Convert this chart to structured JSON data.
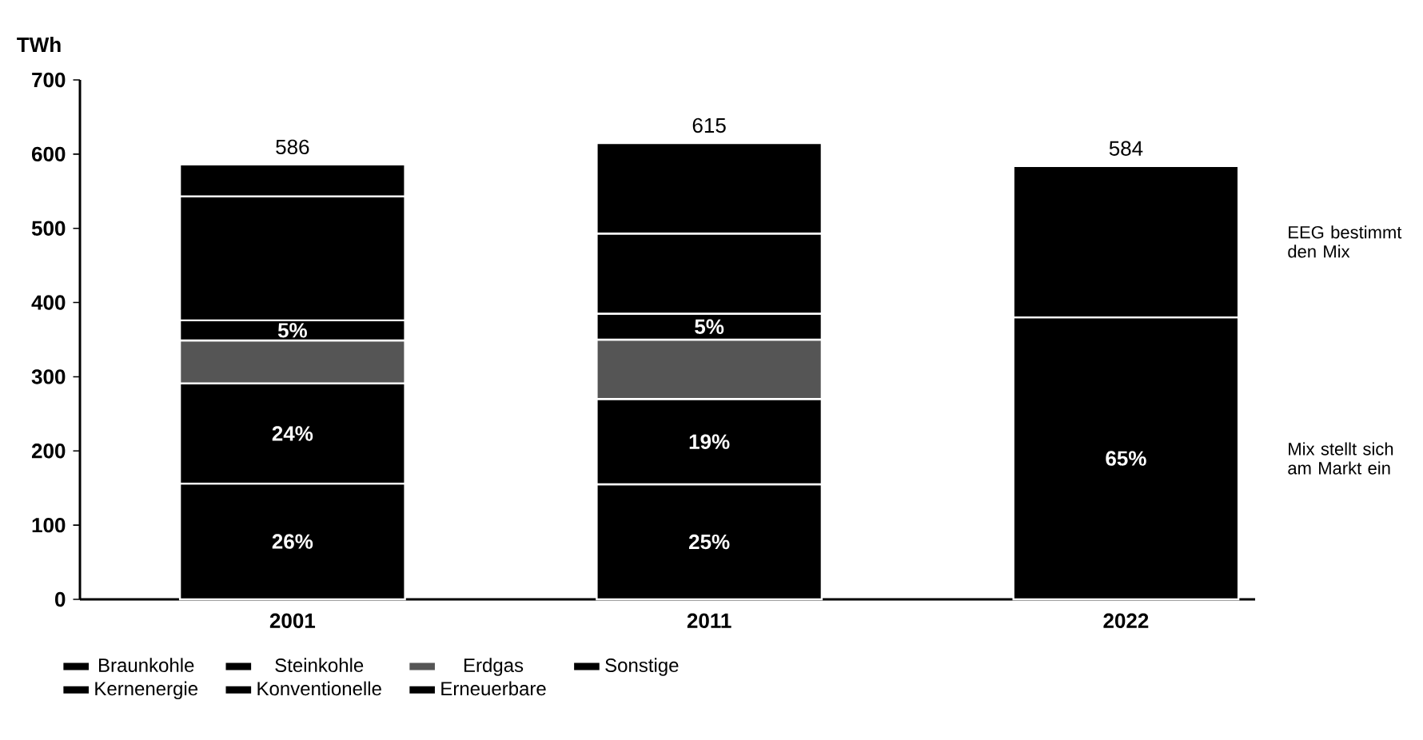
{
  "chart_data": {
    "type": "bar",
    "stacked": true,
    "ylabel": "TWh",
    "categories": [
      "2001",
      "2011",
      "2022"
    ],
    "ylim": [
      0,
      700
    ],
    "yticks": [
      0,
      100,
      200,
      300,
      400,
      500,
      600,
      700
    ],
    "legend": "bottom",
    "grid": false,
    "series": [
      {
        "name": "Braunkohle",
        "color": "#000000",
        "values": [
          156,
          155,
          null
        ]
      },
      {
        "name": "Steinkohle",
        "color": "#000000",
        "values": [
          135,
          115,
          null
        ]
      },
      {
        "name": "Erdgas",
        "color": "#555555",
        "values": [
          58,
          80,
          null
        ]
      },
      {
        "name": "Sonstige",
        "color": "#000000",
        "values": [
          27,
          35,
          null
        ]
      },
      {
        "name": "Kernenergie",
        "color": "#000000",
        "values": [
          167,
          108,
          null
        ]
      },
      {
        "name": "Konventionelle",
        "color": "#000000",
        "values": [
          null,
          null,
          380
        ]
      },
      {
        "name": "Erneuerbare",
        "color": "#000000",
        "values": [
          43,
          122,
          204
        ]
      }
    ],
    "totals": [
      "586",
      "615",
      "584"
    ],
    "annotations": [
      "EEG bestimmt den Mix",
      "Mix stellt sich am Markt ein",
      "26%",
      "25%",
      "24%",
      "19%",
      "5%",
      "5%",
      "65%"
    ]
  }
}
